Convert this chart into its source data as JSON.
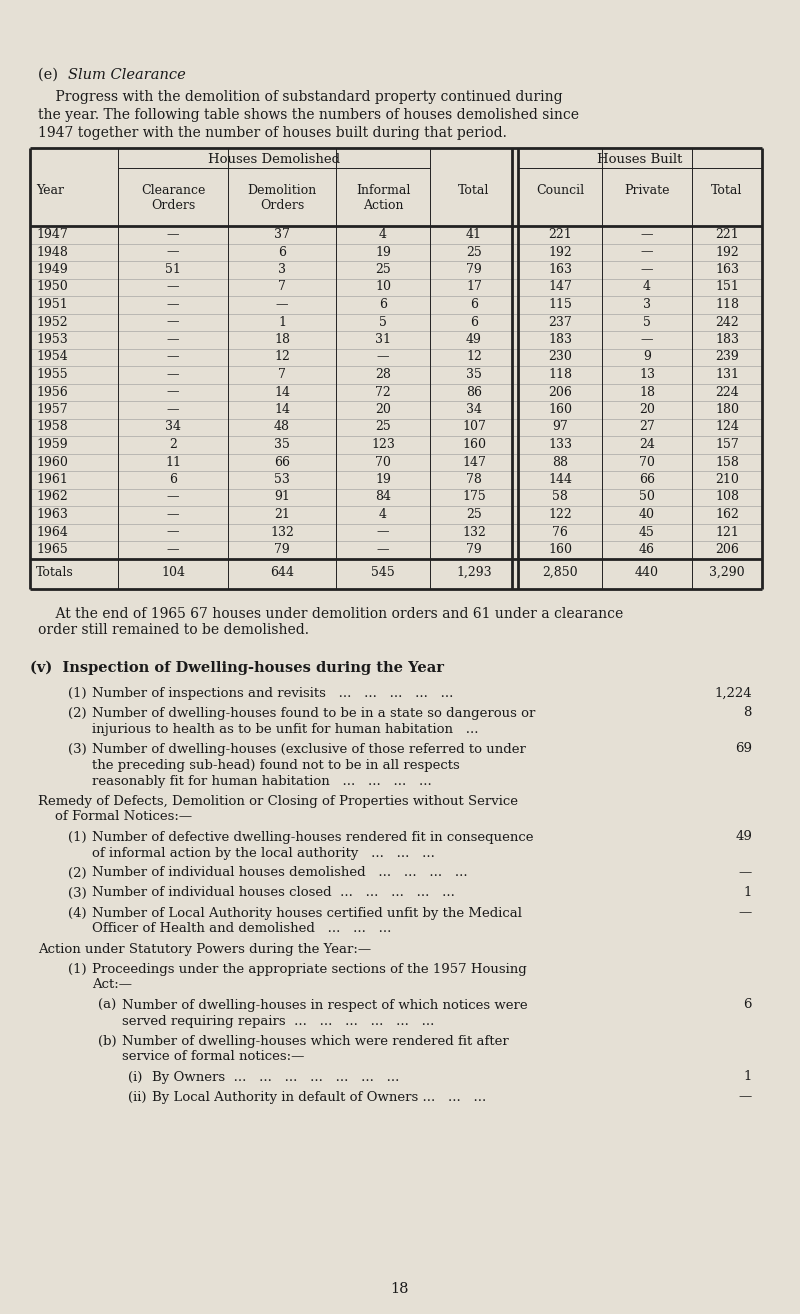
{
  "bg_color": "#e5e0d5",
  "text_color": "#1a1a1a",
  "page_width": 8.0,
  "page_height": 13.14,
  "section_e_title_normal": "(e)  ",
  "section_e_title_italic": "Slum Clearance",
  "intro_lines": [
    "    Progress with the demolition of substandard property continued during",
    "the year. The following table shows the numbers of houses demolished since",
    "1947 together with the number of houses built during that period."
  ],
  "table_header_group1": "Houses Demolished",
  "table_header_group2": "Houses Built",
  "col_headers_line1": [
    "",
    "",
    "Houses Demolished",
    "",
    "",
    "",
    "Houses Built",
    "",
    ""
  ],
  "col_headers": [
    "Year",
    "Clearance\nOrders",
    "Demolition\nOrders",
    "Informal\nAction",
    "Total",
    "Council",
    "Private",
    "Total"
  ],
  "table_data": [
    [
      "1947",
      "—",
      "37",
      "4",
      "41",
      "221",
      "—",
      "221"
    ],
    [
      "1948",
      "—",
      "6",
      "19",
      "25",
      "192",
      "—",
      "192"
    ],
    [
      "1949",
      "51",
      "3",
      "25",
      "79",
      "163",
      "—",
      "163"
    ],
    [
      "1950",
      "—",
      "7",
      "10",
      "17",
      "147",
      "4",
      "151"
    ],
    [
      "1951",
      "—",
      "—",
      "6",
      "6",
      "115",
      "3",
      "118"
    ],
    [
      "1952",
      "—",
      "1",
      "5",
      "6",
      "237",
      "5",
      "242"
    ],
    [
      "1953",
      "—",
      "18",
      "31",
      "49",
      "183",
      "—",
      "183"
    ],
    [
      "1954",
      "—",
      "12",
      "—",
      "12",
      "230",
      "9",
      "239"
    ],
    [
      "1955",
      "—",
      "7",
      "28",
      "35",
      "118",
      "13",
      "131"
    ],
    [
      "1956",
      "—",
      "14",
      "72",
      "86",
      "206",
      "18",
      "224"
    ],
    [
      "1957",
      "—",
      "14",
      "20",
      "34",
      "160",
      "20",
      "180"
    ],
    [
      "1958",
      "34",
      "48",
      "25",
      "107",
      "97",
      "27",
      "124"
    ],
    [
      "1959",
      "2",
      "35",
      "123",
      "160",
      "133",
      "24",
      "157"
    ],
    [
      "1960",
      "11",
      "66",
      "70",
      "147",
      "88",
      "70",
      "158"
    ],
    [
      "1961",
      "6",
      "53",
      "19",
      "78",
      "144",
      "66",
      "210"
    ],
    [
      "1962",
      "—",
      "91",
      "84",
      "175",
      "58",
      "50",
      "108"
    ],
    [
      "1963",
      "—",
      "21",
      "4",
      "25",
      "122",
      "40",
      "162"
    ],
    [
      "1964",
      "—",
      "132",
      "—",
      "132",
      "76",
      "45",
      "121"
    ],
    [
      "1965",
      "—",
      "79",
      "—",
      "79",
      "160",
      "46",
      "206"
    ]
  ],
  "totals_row": [
    "Totals",
    "104",
    "644",
    "545",
    "1,293",
    "2,850",
    "440",
    "3,290"
  ],
  "footnote_lines": [
    "    At the end of 1965 67 houses under demolition orders and 61 under a clearance",
    "order still remained to be demolished."
  ],
  "section_v_bold": "(v)  Inspection of Dwelling-houses during the Year",
  "inspection_items": [
    {
      "prefix": "(1)",
      "indent_level": 1,
      "text_lines": [
        "Number of inspections and revisits   ...   ...   ...   ...   ..."
      ],
      "value": "1,224"
    },
    {
      "prefix": "(2)",
      "indent_level": 1,
      "text_lines": [
        "Number of dwelling-houses found to be in a state so dangerous or",
        "injurious to health as to be unfit for human habitation   ..."
      ],
      "value": "8"
    },
    {
      "prefix": "(3)",
      "indent_level": 1,
      "text_lines": [
        "Number of dwelling-houses (exclusive of those referred to under",
        "the preceding sub-head) found not to be in all respects",
        "reasonably fit for human habitation   ...   ...   ...   ..."
      ],
      "value": "69"
    },
    {
      "prefix": "",
      "indent_level": 0,
      "text_lines": [
        "Remedy of Defects, Demolition or Closing of Properties without Service",
        "    of Formal Notices:—"
      ],
      "value": ""
    },
    {
      "prefix": "(1)",
      "indent_level": 1,
      "text_lines": [
        "Number of defective dwelling-houses rendered fit in consequence",
        "of informal action by the local authority   ...   ...   ..."
      ],
      "value": "49"
    },
    {
      "prefix": "(2)",
      "indent_level": 1,
      "text_lines": [
        "Number of individual houses demolished   ...   ...   ...   ..."
      ],
      "value": "—"
    },
    {
      "prefix": "(3)",
      "indent_level": 1,
      "text_lines": [
        "Number of individual houses closed  ...   ...   ...   ...   ..."
      ],
      "value": "1"
    },
    {
      "prefix": "(4)",
      "indent_level": 1,
      "text_lines": [
        "Number of Local Authority houses certified unfit by the Medical",
        "Officer of Health and demolished   ...   ...   ..."
      ],
      "value": "—"
    },
    {
      "prefix": "",
      "indent_level": 0,
      "text_lines": [
        "Action under Statutory Powers during the Year:—"
      ],
      "value": ""
    },
    {
      "prefix": "(1)",
      "indent_level": 1,
      "text_lines": [
        "Proceedings under the appropriate sections of the 1957 Housing",
        "Act:—"
      ],
      "value": ""
    },
    {
      "prefix": "(a)",
      "indent_level": 2,
      "text_lines": [
        "Number of dwelling-houses in respect of which notices were",
        "served requiring repairs  ...   ...   ...   ...   ...   ..."
      ],
      "value": "6"
    },
    {
      "prefix": "(b)",
      "indent_level": 2,
      "text_lines": [
        "Number of dwelling-houses which were rendered fit after",
        "service of formal notices:—"
      ],
      "value": ""
    },
    {
      "prefix": "(i)",
      "indent_level": 3,
      "text_lines": [
        "By Owners  ...   ...   ...   ...   ...   ...   ..."
      ],
      "value": "1"
    },
    {
      "prefix": "(ii)",
      "indent_level": 3,
      "text_lines": [
        "By Local Authority in default of Owners ...   ...   ..."
      ],
      "value": "—"
    }
  ],
  "page_number": "18"
}
